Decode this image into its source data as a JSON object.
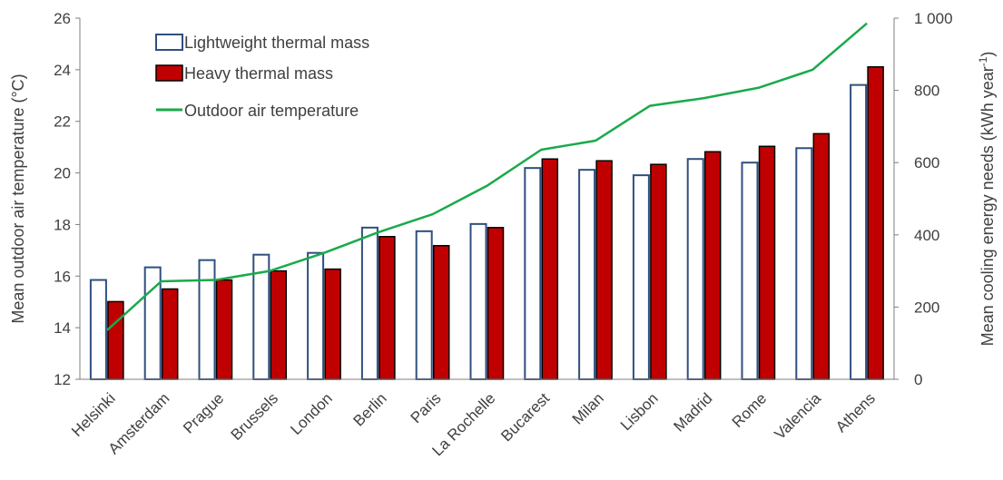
{
  "chart_data": {
    "type": "bar",
    "categories": [
      "Helsinki",
      "Amsterdam",
      "Prague",
      "Brussels",
      "London",
      "Berlin",
      "Paris",
      "La Rochelle",
      "Bucarest",
      "Milan",
      "Lisbon",
      "Madrid",
      "Rome",
      "Valencia",
      "Athens"
    ],
    "series": [
      {
        "name": "Lightweight thermal mass",
        "kind": "bar",
        "axis": "right",
        "color": "#ffffff",
        "stroke": "#2f4f7f",
        "values": [
          275,
          310,
          330,
          345,
          350,
          420,
          410,
          430,
          585,
          580,
          565,
          610,
          600,
          640,
          815
        ]
      },
      {
        "name": "Heavy thermal mass",
        "kind": "bar",
        "axis": "right",
        "color": "#c00000",
        "stroke": "#000000",
        "values": [
          215,
          250,
          275,
          300,
          305,
          395,
          370,
          420,
          610,
          605,
          595,
          630,
          645,
          680,
          865
        ]
      },
      {
        "name": "Outdoor air temperature",
        "kind": "line",
        "axis": "left",
        "color": "#1aaa4a",
        "values": [
          13.9,
          15.8,
          15.85,
          16.2,
          16.9,
          17.7,
          18.4,
          19.5,
          20.9,
          21.25,
          22.6,
          22.9,
          23.3,
          24.0,
          25.8
        ]
      }
    ],
    "ylabel_left": "Mean outdoor air temperature (°C)",
    "ylim_left": [
      12,
      26
    ],
    "yticks_left": [
      "12",
      "14",
      "16",
      "18",
      "20",
      "22",
      "24",
      "26"
    ],
    "ylabel_right_main": "Mean cooling energy needs (kWh year",
    "ylabel_right_sup": "-1",
    "ylabel_right_end": ")",
    "ylim_right": [
      0,
      1000
    ],
    "yticks_right": [
      "0",
      "200",
      "400",
      "600",
      "800",
      "1 000"
    ],
    "grid": false,
    "legend_position": "top-left"
  }
}
